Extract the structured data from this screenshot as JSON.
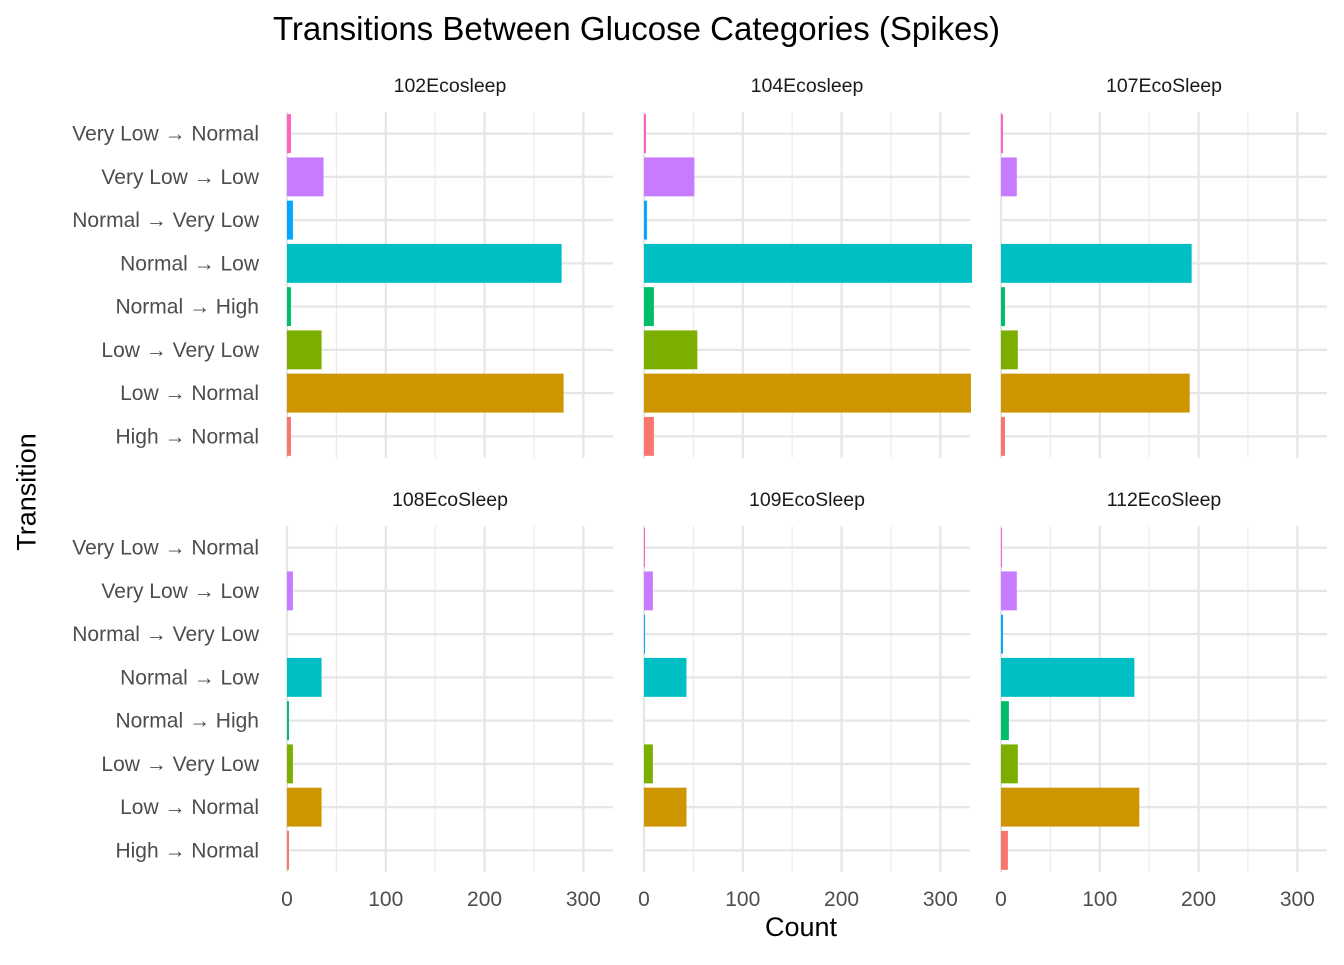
{
  "chart_data": {
    "type": "bar",
    "orientation": "horizontal",
    "title": "Transitions Between Glucose Categories (Spikes)",
    "xlabel": "Count",
    "ylabel": "Transition",
    "xlim": [
      0,
      330
    ],
    "x_ticks": [
      0,
      100,
      200,
      300
    ],
    "grid": true,
    "legend": "none",
    "categories": [
      "Very Low → Normal",
      "Very Low → Low",
      "Normal → Very Low",
      "Normal → Low",
      "Normal → High",
      "Low → Very Low",
      "Low → Normal",
      "High → Normal"
    ],
    "category_colors": {
      "Very Low → Normal": "#FF61C3",
      "Very Low → Low": "#C77CFF",
      "Normal → Very Low": "#00A9FF",
      "Normal → Low": "#00BFC4",
      "Normal → High": "#00BE67",
      "Low → Very Low": "#7CAE00",
      "Low → Normal": "#CD9600",
      "High → Normal": "#F8766D"
    },
    "facets": [
      {
        "name": "102Ecosleep",
        "values": [
          4,
          37,
          6,
          278,
          4,
          35,
          280,
          4
        ]
      },
      {
        "name": "104Ecosleep",
        "values": [
          2,
          51,
          3,
          332,
          10,
          54,
          331,
          10
        ]
      },
      {
        "name": "107EcoSleep",
        "values": [
          2,
          16,
          0,
          193,
          4,
          17,
          191,
          4
        ]
      },
      {
        "name": "108EcoSleep",
        "values": [
          0,
          6,
          0,
          35,
          2,
          6,
          35,
          2
        ]
      },
      {
        "name": "109EcoSleep",
        "values": [
          1,
          9,
          1,
          43,
          0,
          9,
          43,
          0
        ]
      },
      {
        "name": "112EcoSleep",
        "values": [
          1,
          16,
          2,
          135,
          8,
          17,
          140,
          7
        ]
      }
    ]
  }
}
